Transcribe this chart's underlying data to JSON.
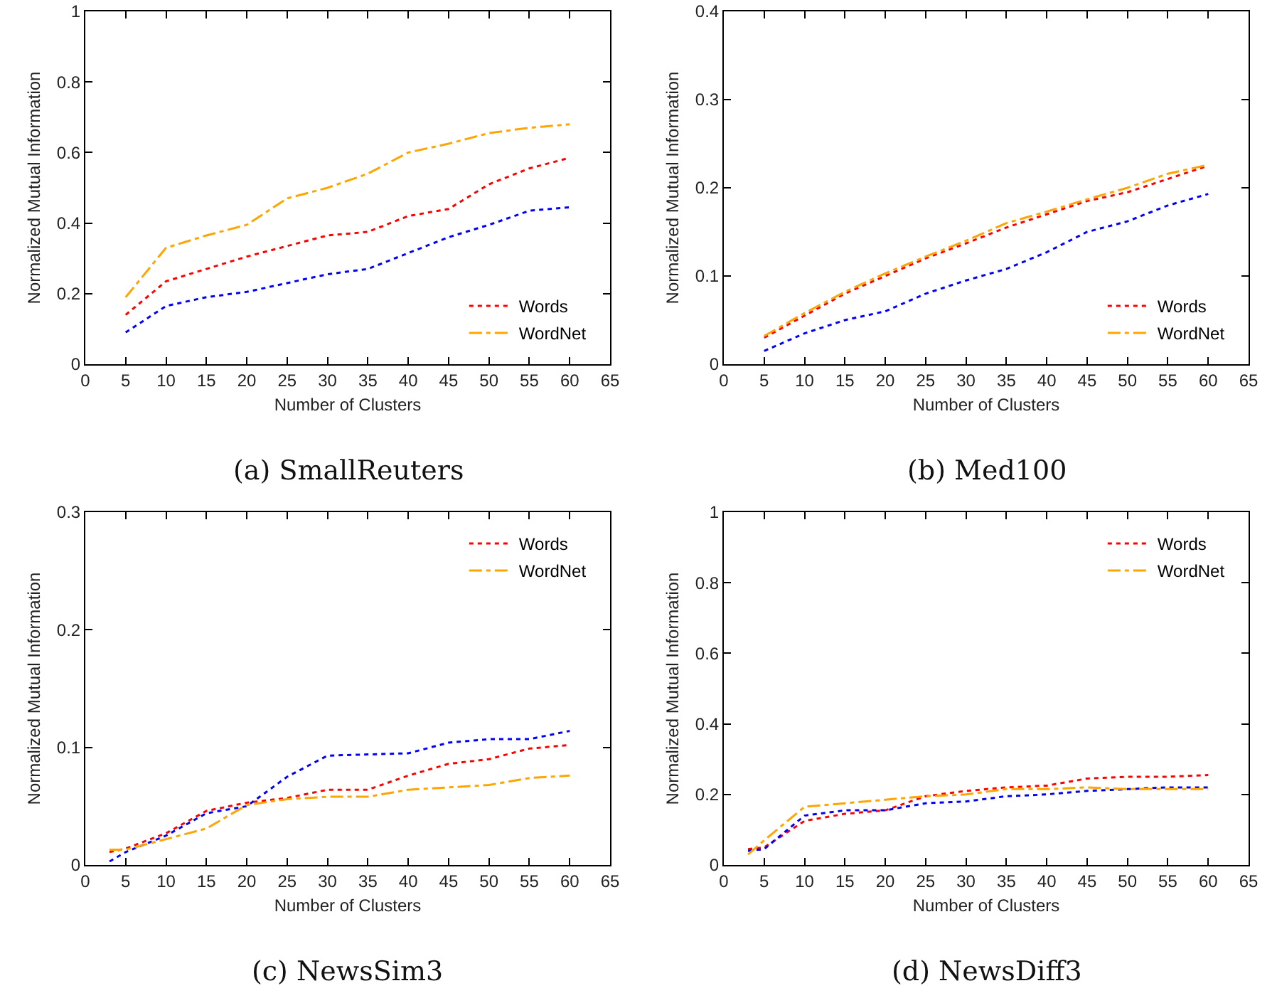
{
  "chart_data": [
    {
      "type": "line",
      "title": "(a) SmallReuters",
      "xlabel": "Number of Clusters",
      "ylabel": "Normalized Mutual Information",
      "x": [
        5,
        10,
        15,
        20,
        25,
        30,
        35,
        40,
        45,
        50,
        55,
        60
      ],
      "xlim": [
        0,
        65
      ],
      "xticks": [
        0,
        5,
        10,
        15,
        20,
        25,
        30,
        35,
        40,
        45,
        50,
        55,
        60,
        65
      ],
      "ylim": [
        0,
        1
      ],
      "yticks": [
        0,
        0.2,
        0.4,
        0.6,
        0.8,
        1
      ],
      "grid": false,
      "legend": "bottom right",
      "marker": "none",
      "series": [
        {
          "name": "Words",
          "color": "#ff0000",
          "line_style": "dotted",
          "values": [
            0.14,
            0.235,
            0.27,
            0.305,
            0.335,
            0.365,
            0.375,
            0.42,
            0.44,
            0.51,
            0.555,
            0.585
          ]
        },
        {
          "color": "#0000ff",
          "line_style": "dotted",
          "values": [
            0.09,
            0.165,
            0.19,
            0.205,
            0.23,
            0.255,
            0.27,
            0.315,
            0.36,
            0.395,
            0.435,
            0.445
          ]
        },
        {
          "name": "WordNet",
          "color": "#ffa500",
          "line_style": "dashed",
          "values": [
            0.19,
            0.33,
            0.365,
            0.395,
            0.47,
            0.5,
            0.54,
            0.6,
            0.625,
            0.655,
            0.67,
            0.68
          ]
        }
      ]
    },
    {
      "type": "line",
      "title": "(b) Med100",
      "xlabel": "Number of Clusters",
      "ylabel": "Normalized Mutual Information",
      "x": [
        5,
        10,
        15,
        20,
        25,
        30,
        35,
        40,
        45,
        50,
        55,
        60
      ],
      "xlim": [
        0,
        65
      ],
      "xticks": [
        0,
        5,
        10,
        15,
        20,
        25,
        30,
        35,
        40,
        45,
        50,
        55,
        60,
        65
      ],
      "ylim": [
        0,
        0.4
      ],
      "yticks": [
        0,
        0.1,
        0.2,
        0.3,
        0.4
      ],
      "grid": false,
      "legend": "bottom right",
      "marker": "none",
      "series": [
        {
          "name": "Words",
          "color": "#ff0000",
          "line_style": "dotted",
          "values": [
            0.03,
            0.055,
            0.08,
            0.1,
            0.12,
            0.137,
            0.155,
            0.17,
            0.185,
            0.195,
            0.21,
            0.225
          ]
        },
        {
          "color": "#0000ff",
          "line_style": "dotted",
          "values": [
            0.015,
            0.035,
            0.05,
            0.06,
            0.08,
            0.095,
            0.108,
            0.127,
            0.15,
            0.162,
            0.18,
            0.193
          ]
        },
        {
          "name": "WordNet",
          "color": "#ffa500",
          "line_style": "dashed",
          "values": [
            0.032,
            0.058,
            0.082,
            0.103,
            0.122,
            0.14,
            0.16,
            0.173,
            0.187,
            0.2,
            0.216,
            0.226
          ]
        }
      ]
    },
    {
      "type": "line",
      "title": "(c) NewsSim3",
      "xlabel": "Number of Clusters",
      "ylabel": "Normalized Mutual Information",
      "x": [
        3,
        5,
        10,
        15,
        20,
        25,
        30,
        35,
        40,
        45,
        50,
        55,
        60
      ],
      "xlim": [
        0,
        65
      ],
      "xticks": [
        0,
        5,
        10,
        15,
        20,
        25,
        30,
        35,
        40,
        45,
        50,
        55,
        60,
        65
      ],
      "ylim": [
        0,
        0.3
      ],
      "yticks": [
        0,
        0.1,
        0.2,
        0.3
      ],
      "grid": false,
      "legend": "top right",
      "marker": "none",
      "series": [
        {
          "name": "Words",
          "color": "#ff0000",
          "line_style": "dotted",
          "values": [
            0.011,
            0.014,
            0.027,
            0.046,
            0.053,
            0.057,
            0.064,
            0.064,
            0.076,
            0.086,
            0.09,
            0.099,
            0.102
          ]
        },
        {
          "color": "#0000ff",
          "line_style": "dotted",
          "values": [
            0.003,
            0.011,
            0.025,
            0.044,
            0.05,
            0.075,
            0.093,
            0.094,
            0.095,
            0.104,
            0.107,
            0.107,
            0.114
          ]
        },
        {
          "name": "WordNet",
          "color": "#ffa500",
          "line_style": "dashed",
          "values": [
            0.013,
            0.013,
            0.022,
            0.031,
            0.051,
            0.056,
            0.058,
            0.058,
            0.064,
            0.066,
            0.068,
            0.074,
            0.076
          ]
        }
      ]
    },
    {
      "type": "line",
      "title": "(d) NewsDiff3",
      "xlabel": "Number of Clusters",
      "ylabel": "Normalized Mutual Information",
      "x": [
        3,
        5,
        10,
        15,
        20,
        25,
        30,
        35,
        40,
        45,
        50,
        55,
        60
      ],
      "xlim": [
        0,
        65
      ],
      "xticks": [
        0,
        5,
        10,
        15,
        20,
        25,
        30,
        35,
        40,
        45,
        50,
        55,
        60,
        65
      ],
      "ylim": [
        0,
        1
      ],
      "yticks": [
        0,
        0.2,
        0.4,
        0.6,
        0.8,
        1
      ],
      "grid": false,
      "legend": "top right",
      "marker": "none",
      "series": [
        {
          "name": "Words",
          "color": "#ff0000",
          "line_style": "dotted",
          "values": [
            0.045,
            0.05,
            0.125,
            0.145,
            0.155,
            0.195,
            0.21,
            0.22,
            0.225,
            0.245,
            0.25,
            0.25,
            0.255
          ]
        },
        {
          "color": "#0000ff",
          "line_style": "dotted",
          "values": [
            0.04,
            0.045,
            0.14,
            0.155,
            0.155,
            0.175,
            0.18,
            0.195,
            0.2,
            0.21,
            0.215,
            0.22,
            0.22
          ]
        },
        {
          "name": "WordNet",
          "color": "#ffa500",
          "line_style": "dashed",
          "values": [
            0.03,
            0.07,
            0.165,
            0.175,
            0.185,
            0.195,
            0.2,
            0.215,
            0.215,
            0.22,
            0.215,
            0.215,
            0.215
          ]
        }
      ]
    }
  ]
}
